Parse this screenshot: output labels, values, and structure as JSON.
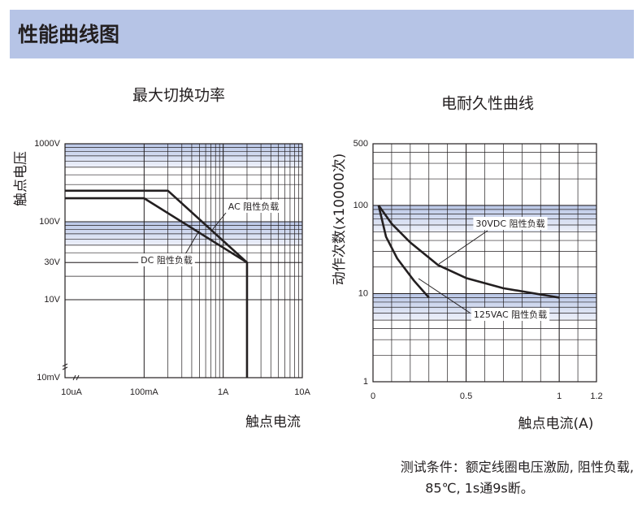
{
  "header": {
    "title": "性能曲线图"
  },
  "note": [
    "测试条件：额定线圈电压激励, 阻性负载,",
    "85℃, 1s通9s断。"
  ],
  "chart_data": [
    {
      "type": "line",
      "title": "最大切换功率",
      "xlabel": "触点电流",
      "ylabel": "触点电压",
      "xscale": "log",
      "yscale": "log",
      "xbreak": true,
      "ybreak": true,
      "grid": true,
      "xlim": [
        1e-05,
        10
      ],
      "xticks": [
        {
          "value": 1e-05,
          "label": "10uA"
        },
        {
          "value": 0.1,
          "label": "100mA"
        },
        {
          "value": 1,
          "label": "1A"
        },
        {
          "value": 10,
          "label": "10A"
        }
      ],
      "ylim": [
        0.01,
        1000
      ],
      "yticks": [
        {
          "value": 0.01,
          "label": "10mV"
        },
        {
          "value": 10,
          "label": "10V"
        },
        {
          "value": 30,
          "label": "30V"
        },
        {
          "value": 100,
          "label": "100V"
        },
        {
          "value": 1000,
          "label": "1000V"
        }
      ],
      "series": [
        {
          "name": "AC 阻性负载",
          "color": "#231f20",
          "x": [
            1e-05,
            0.2,
            2,
            2
          ],
          "values": [
            250,
            250,
            30,
            0.01
          ]
        },
        {
          "name": "DC 阻性负载",
          "color": "#231f20",
          "x": [
            1e-05,
            0.1,
            2
          ],
          "values": [
            200,
            200,
            30
          ]
        }
      ]
    },
    {
      "type": "line",
      "title": "电耐久性曲线",
      "xlabel": "触点电流(A)",
      "ylabel": "动作次数(x10000次)",
      "xscale": "linear",
      "yscale": "log",
      "xbreak": false,
      "ybreak": false,
      "grid": true,
      "xlim": [
        0,
        1.2
      ],
      "xticks": [
        0,
        0.5,
        1,
        1.2
      ],
      "ylim": [
        1,
        500
      ],
      "yticks": [
        1,
        10,
        100,
        500
      ],
      "series": [
        {
          "name": "30VDC 阻性负载",
          "color": "#231f20",
          "x": [
            0.03,
            0.1,
            0.2,
            0.35,
            0.5,
            0.7,
            1.0
          ],
          "values": [
            100,
            62,
            38,
            21,
            15,
            11.5,
            9
          ]
        },
        {
          "name": "125VAC 阻性负载",
          "color": "#231f20",
          "x": [
            0.03,
            0.07,
            0.13,
            0.22,
            0.3
          ],
          "values": [
            100,
            44,
            25,
            14,
            9
          ]
        }
      ]
    }
  ]
}
